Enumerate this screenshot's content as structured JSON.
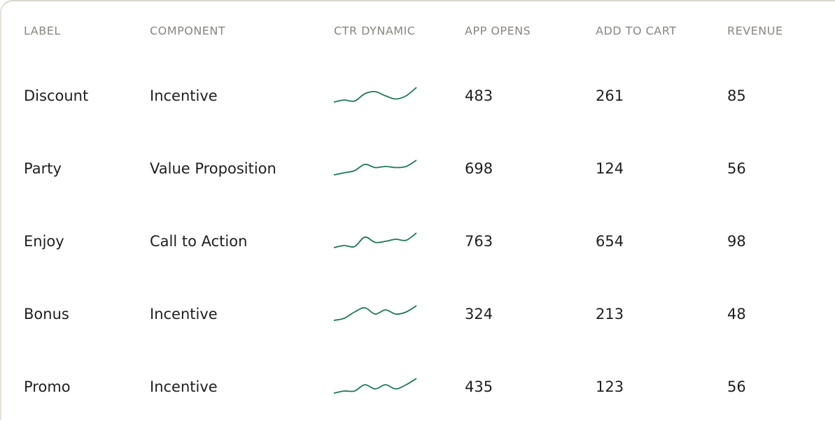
{
  "table": {
    "columns": [
      "LABEL",
      "COMPONENT",
      "CTR DYNAMIC",
      "APP OPENS",
      "ADD TO CART",
      "REVENUE"
    ],
    "rows": [
      {
        "label": "Discount",
        "component": "Incentive",
        "ctr_dynamic": [
          1,
          2,
          1.5,
          5,
          6,
          4,
          2.5,
          4,
          8
        ],
        "app_opens": 483,
        "add_to_cart": 261,
        "revenue": 85
      },
      {
        "label": "Party",
        "component": "Value Proposition",
        "ctr_dynamic": [
          1,
          2,
          3,
          6,
          4.5,
          5,
          4.5,
          5,
          8
        ],
        "app_opens": 698,
        "add_to_cart": 124,
        "revenue": 56
      },
      {
        "label": "Enjoy",
        "component": "Call to Action",
        "ctr_dynamic": [
          1,
          2,
          1.5,
          6,
          3.5,
          4,
          5,
          4.5,
          8
        ],
        "app_opens": 763,
        "add_to_cart": 654,
        "revenue": 98
      },
      {
        "label": "Bonus",
        "component": "Incentive",
        "ctr_dynamic": [
          1,
          2,
          5,
          7,
          4,
          6,
          4,
          5,
          8
        ],
        "app_opens": 324,
        "add_to_cart": 213,
        "revenue": 48
      },
      {
        "label": "Promo",
        "component": "Incentive",
        "ctr_dynamic": [
          1,
          2,
          2,
          5,
          3,
          5,
          3,
          5,
          8
        ],
        "app_opens": 435,
        "add_to_cart": 123,
        "revenue": 56
      }
    ]
  }
}
